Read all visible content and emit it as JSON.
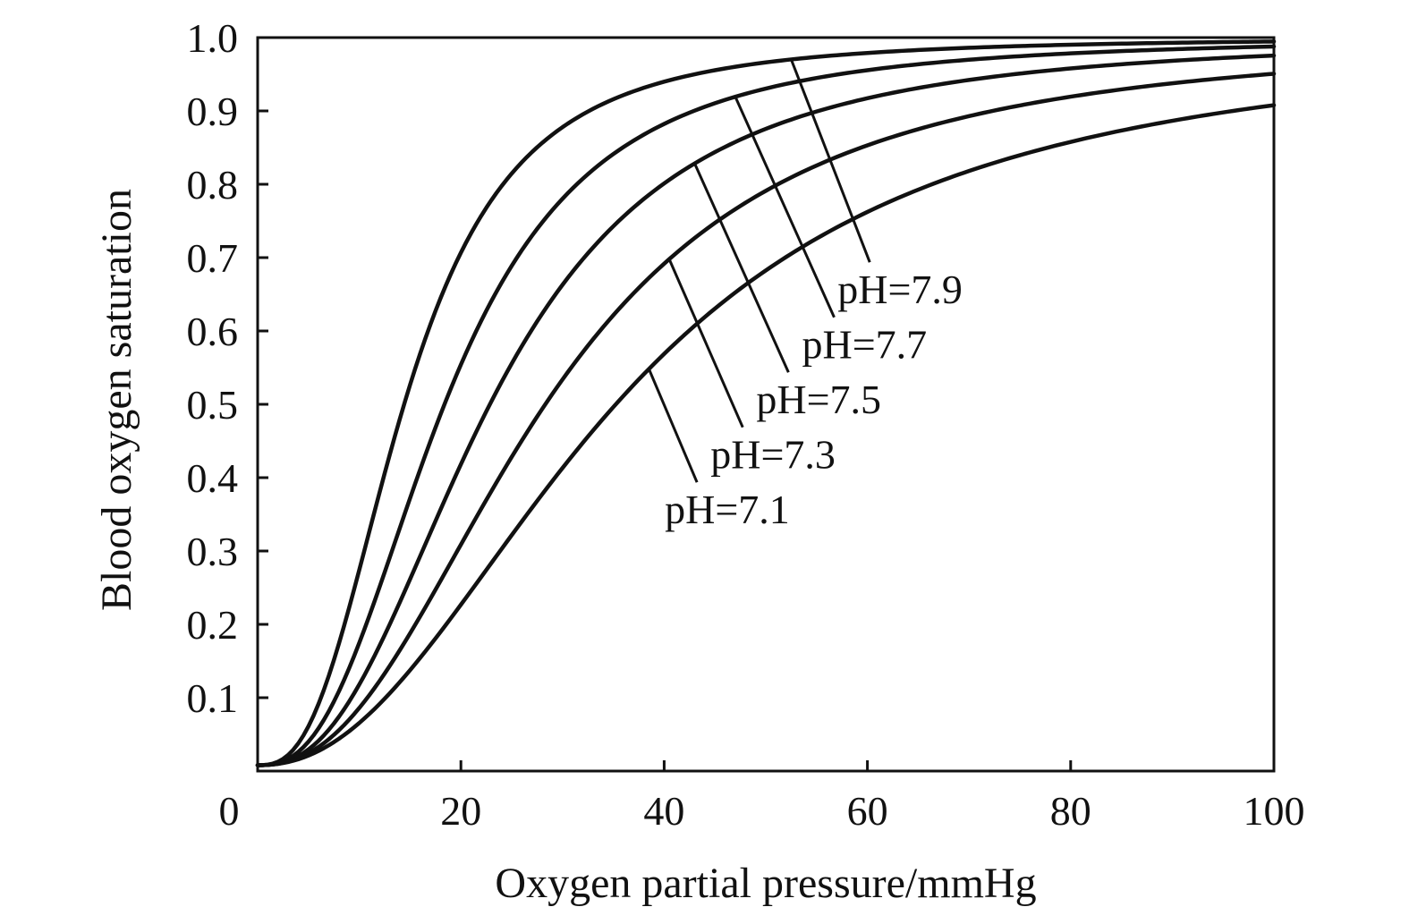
{
  "chart_data": {
    "type": "line",
    "title": "",
    "xlabel": "Oxygen partial pressure/mmHg",
    "ylabel": "Blood oxygen saturation",
    "xlim": [
      0,
      100
    ],
    "ylim": [
      0,
      1.0
    ],
    "x_ticks": [
      0,
      20,
      40,
      60,
      80,
      100
    ],
    "x_tick_labels": [
      "0",
      "20",
      "40",
      "60",
      "80",
      "100"
    ],
    "y_ticks": [
      0.1,
      0.2,
      0.3,
      0.4,
      0.5,
      0.6,
      0.7,
      0.8,
      0.9,
      1.0
    ],
    "y_tick_labels": [
      "0.1",
      "0.2",
      "0.3",
      "0.4",
      "0.5",
      "0.6",
      "0.7",
      "0.8",
      "0.9",
      "1.0"
    ],
    "grid": false,
    "legend": "none",
    "line_color": "#111111",
    "curve_model": {
      "description_fields": [
        "p50",
        "hill_n",
        "s_max"
      ]
    },
    "series": [
      {
        "name": "pH=7.9",
        "p50": 14.5,
        "hill_n": 2.7,
        "s_max": 1.0,
        "label_anchor_x": 52.5
      },
      {
        "name": "pH=7.7",
        "p50": 18.5,
        "hill_n": 2.6,
        "s_max": 1.0,
        "label_anchor_x": 47.0
      },
      {
        "name": "pH=7.5",
        "p50": 23.0,
        "hill_n": 2.5,
        "s_max": 1.0,
        "label_anchor_x": 43.0
      },
      {
        "name": "pH=7.3",
        "p50": 28.5,
        "hill_n": 2.35,
        "s_max": 1.0,
        "label_anchor_x": 40.5
      },
      {
        "name": "pH=7.1",
        "p50": 35.5,
        "hill_n": 2.2,
        "s_max": 1.0,
        "label_anchor_x": 38.5
      }
    ],
    "label_placement": [
      {
        "name": "pH=7.9",
        "x": 59.0,
        "y": 0.64
      },
      {
        "name": "pH=7.7",
        "x": 55.5,
        "y": 0.565
      },
      {
        "name": "pH=7.5",
        "x": 51.0,
        "y": 0.49
      },
      {
        "name": "pH=7.3",
        "x": 46.5,
        "y": 0.415
      },
      {
        "name": "pH=7.1",
        "x": 42.0,
        "y": 0.34
      }
    ]
  }
}
